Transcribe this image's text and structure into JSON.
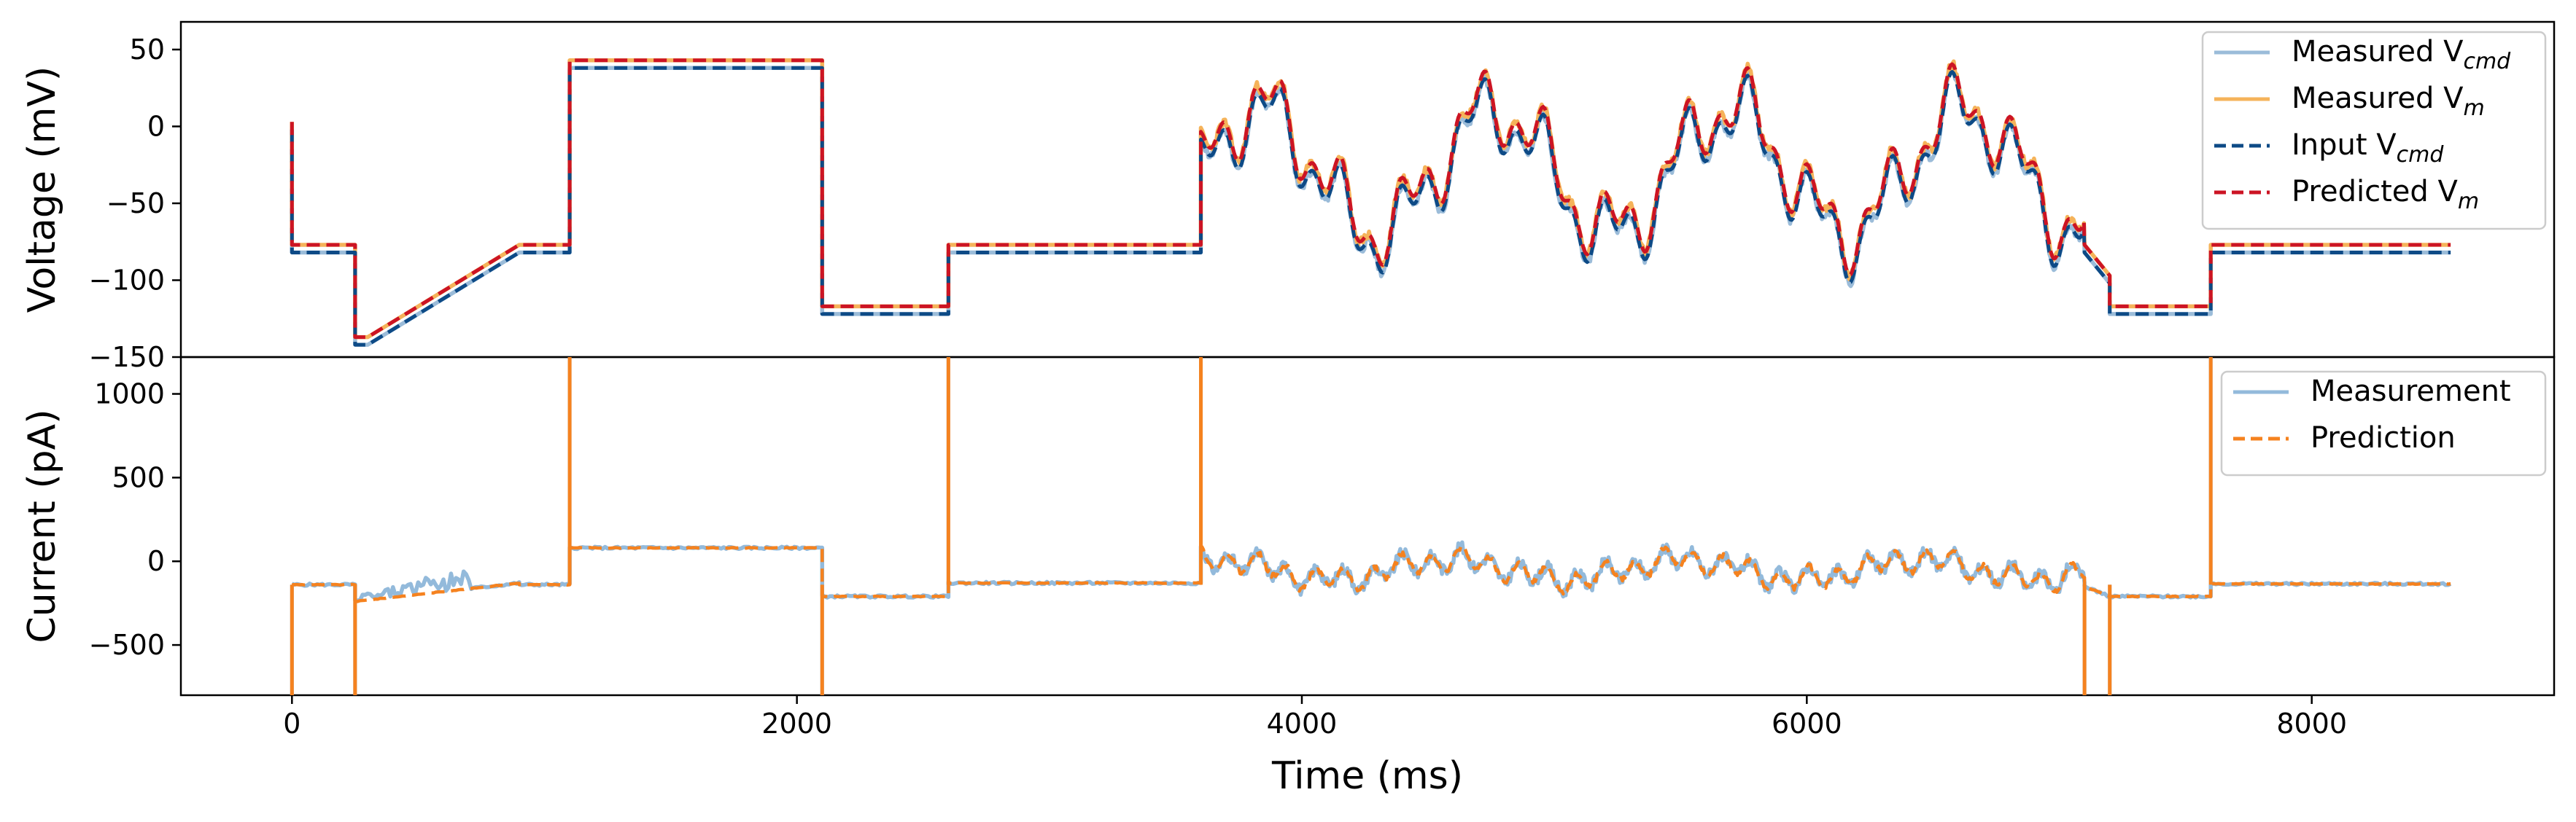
{
  "chart_data": [
    {
      "type": "line",
      "ylabel": "Voltage (mV)",
      "ylim": [
        -150,
        68
      ],
      "yticks": [
        50,
        0,
        -50,
        -100,
        -150
      ],
      "xlim": [
        -440,
        8960
      ],
      "legend_position": "top-right",
      "legend": [
        {
          "base": "Measured V",
          "sub": "cmd",
          "style": "solid",
          "color": "#9bbcd9"
        },
        {
          "base": "Measured V",
          "sub": "m",
          "style": "solid",
          "color": "#f5b35a"
        },
        {
          "base": "Input V",
          "sub": "cmd",
          "style": "dashed",
          "color": "#0d4a86"
        },
        {
          "base": "Predicted V",
          "sub": "m",
          "style": "dashed",
          "color": "#cc1424"
        }
      ],
      "series": [
        {
          "values_from": "voltage_profile",
          "color": "#9bbcd9",
          "style": "solid",
          "offset": -2,
          "noise_seed": 11
        },
        {
          "values_from": "voltage_profile",
          "color": "#f5b35a",
          "style": "solid",
          "offset": 3,
          "noise_seed": 23
        },
        {
          "values_from": "voltage_profile",
          "color": "#0d4a86",
          "style": "dashed",
          "offset": -2,
          "noise_seed": 0
        },
        {
          "values_from": "voltage_profile",
          "color": "#cc1424",
          "style": "dashed",
          "offset": 3,
          "noise_seed": 0
        }
      ],
      "voltage_profile": {
        "x": [
          0,
          0,
          250,
          250,
          300,
          900,
          1100,
          1100,
          2100,
          2100,
          2600,
          2600,
          3600,
          3600,
          7100,
          7200,
          7200,
          7600,
          7600,
          8550
        ],
        "y": [
          0,
          -80,
          -80,
          -140,
          -140,
          -80,
          -80,
          40,
          40,
          -120,
          -120,
          -80,
          -80,
          -40,
          -80,
          -100,
          -120,
          -120,
          -80,
          -80
        ],
        "sine_section": {
          "x_start": 3600,
          "x_end": 7100,
          "center": -30,
          "amplitudes": [
            40,
            18,
            12
          ],
          "periods_ms": [
            930,
            270,
            115
          ]
        }
      }
    },
    {
      "type": "line",
      "xlabel": "Time (ms)",
      "ylabel": "Current (pA)",
      "ylim": [
        -800,
        1220
      ],
      "yticks": [
        1000,
        500,
        0,
        -500
      ],
      "xlim": [
        -440,
        8960
      ],
      "xticks": [
        0,
        2000,
        4000,
        6000,
        8000
      ],
      "legend_position": "top-right",
      "legend": [
        {
          "base": "Measurement",
          "sub": "",
          "style": "solid",
          "color": "#93badb"
        },
        {
          "base": "Prediction",
          "sub": "",
          "style": "dashed",
          "color": "#f5821f"
        }
      ],
      "series": [
        {
          "name": "Measurement",
          "color": "#93badb",
          "style": "solid"
        },
        {
          "name": "Prediction",
          "color": "#f5821f",
          "style": "dashed"
        }
      ],
      "levels": [
        {
          "x0": 0,
          "x1": 250,
          "y": -140
        },
        {
          "x0": 250,
          "x1": 900,
          "y0": -240,
          "y1": -130
        },
        {
          "x0": 900,
          "x1": 1100,
          "y": -140
        },
        {
          "x0": 1100,
          "x1": 2100,
          "y": 80
        },
        {
          "x0": 2100,
          "x1": 2600,
          "y": -210
        },
        {
          "x0": 2600,
          "x1": 3600,
          "y": -130
        },
        {
          "x0": 7100,
          "x1": 7200,
          "y0": -150,
          "y1": -210
        },
        {
          "x0": 7200,
          "x1": 7600,
          "y": -210
        },
        {
          "x0": 7600,
          "x1": 8550,
          "y": -135
        }
      ],
      "spikes": [
        0,
        250,
        1100,
        2100,
        2600,
        3600,
        7100,
        7200,
        7600
      ]
    }
  ]
}
